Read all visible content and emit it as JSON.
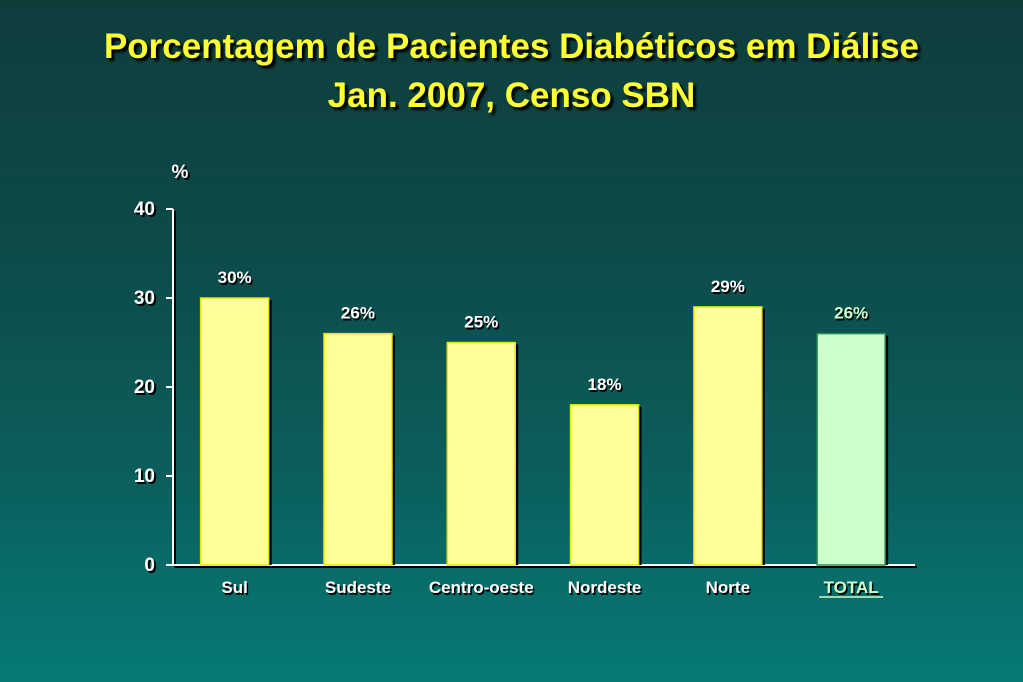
{
  "title_line1": "Porcentagem de Pacientes Diabéticos em Diálise",
  "title_line2": "Jan. 2007, Censo SBN",
  "colors": {
    "title": "#ffff33",
    "bar": "#ffff99",
    "bar_highlight": "#ccffcc",
    "axis": "#ffffff",
    "label": "#ffffff",
    "highlight_label": "#ccffcc"
  },
  "chart_data": {
    "type": "bar",
    "ylabel": "%",
    "ylim": [
      0,
      40
    ],
    "yticks": [
      "0",
      "10",
      "20",
      "30",
      "40"
    ],
    "categories": [
      "Sul",
      "Sudeste",
      "Centro-oeste",
      "Nordeste",
      "Norte",
      "TOTAL"
    ],
    "values": [
      30,
      26,
      25,
      18,
      29,
      26
    ],
    "value_labels": [
      "30%",
      "26%",
      "25%",
      "18%",
      "29%",
      "26%"
    ],
    "highlight_category": "TOTAL",
    "grid": false,
    "legend": "none"
  }
}
